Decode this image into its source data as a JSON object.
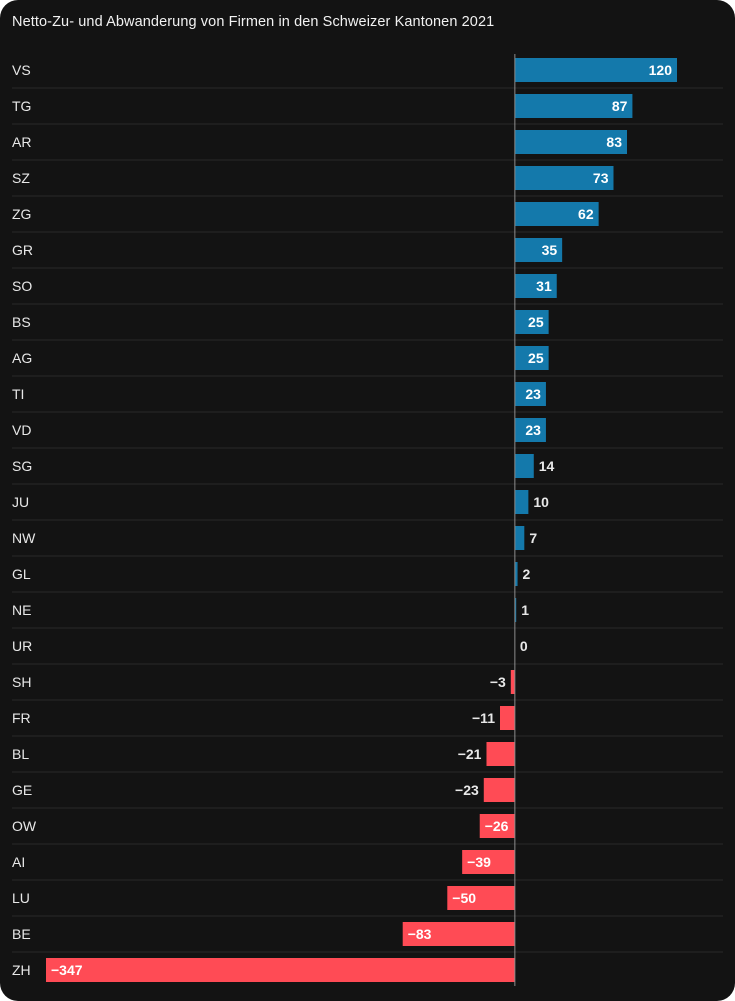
{
  "chart_data": {
    "type": "bar",
    "orientation": "horizontal",
    "title": "Netto-Zu- und Abwanderung von Firmen in den Schweizer Kantonen 2021",
    "xlabel": "",
    "ylabel": "",
    "grid": false,
    "xlim": [
      -347,
      120
    ],
    "categories": [
      "VS",
      "TG",
      "AR",
      "SZ",
      "ZG",
      "GR",
      "SO",
      "BS",
      "AG",
      "TI",
      "VD",
      "SG",
      "JU",
      "NW",
      "GL",
      "NE",
      "UR",
      "SH",
      "FR",
      "BL",
      "GE",
      "OW",
      "AI",
      "LU",
      "BE",
      "ZH"
    ],
    "values": [
      120,
      87,
      83,
      73,
      62,
      35,
      31,
      25,
      25,
      23,
      23,
      14,
      10,
      7,
      2,
      1,
      0,
      -3,
      -11,
      -21,
      -23,
      -26,
      -39,
      -50,
      -83,
      -347
    ],
    "value_labels": [
      "120",
      "87",
      "83",
      "73",
      "62",
      "35",
      "31",
      "25",
      "25",
      "23",
      "23",
      "14",
      "10",
      "7",
      "2",
      "1",
      "0",
      "−3",
      "−11",
      "−21",
      "−23",
      "−26",
      "−39",
      "−50",
      "−83",
      "−347"
    ],
    "colors": {
      "positive": "#1479ab",
      "negative": "#ff4b55",
      "background": "#131313",
      "text": "#e8e8e8",
      "inside_label": "#ffffff",
      "separator": "#2a2a2a",
      "axis": "#8c8c8c"
    }
  }
}
